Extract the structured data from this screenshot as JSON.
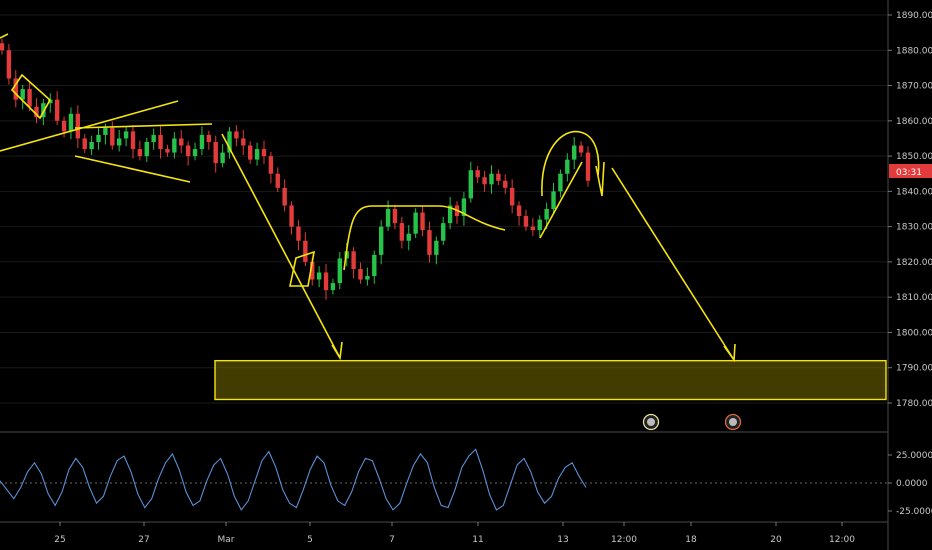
{
  "chart_data": [
    {
      "type": "candlestick",
      "title": "",
      "y_axis": {
        "ticks": [
          "1890.000",
          "1880.000",
          "1870.000",
          "1860.000",
          "1850.000",
          "1840.000",
          "1830.000",
          "1820.000",
          "1810.000",
          "1800.000",
          "1790.000",
          "1780.000"
        ],
        "range": [
          1774,
          1893
        ]
      },
      "x_axis": {
        "ticks": [
          "25",
          "27",
          "Mar",
          "5",
          "7",
          "11",
          "13",
          "12:00",
          "18",
          "20",
          "12:00"
        ]
      },
      "current_price_countdown": "03:31",
      "colors": {
        "up": "#26c24a",
        "down": "#e23b3b",
        "drawing": "#f5e50c",
        "price_tag": "#e23b3b"
      },
      "close_series": [
        1880,
        1872,
        1866,
        1869,
        1864,
        1861,
        1865,
        1866,
        1860,
        1857,
        1862,
        1855,
        1852,
        1854,
        1856,
        1858,
        1853,
        1855,
        1857,
        1852,
        1850,
        1854,
        1856,
        1852,
        1851,
        1855,
        1853,
        1850,
        1852,
        1856,
        1854,
        1848,
        1851,
        1857,
        1855,
        1853,
        1849,
        1852,
        1850,
        1845,
        1841,
        1836,
        1830,
        1826,
        1820,
        1815,
        1817,
        1812,
        1814,
        1821,
        1823,
        1818,
        1815,
        1816,
        1822,
        1830,
        1835,
        1831,
        1826,
        1828,
        1834,
        1829,
        1822,
        1826,
        1831,
        1836,
        1833,
        1838,
        1846,
        1844,
        1842,
        1845,
        1843,
        1841,
        1836,
        1833,
        1830,
        1829,
        1832,
        1835,
        1840,
        1845,
        1849,
        1853,
        1851,
        1843
      ],
      "annotations": [
        "trendline",
        "triangle",
        "channel",
        "rising-wedge",
        "rounded-top",
        "projection-arrow-1",
        "projection-arrow-2",
        "target-zone"
      ],
      "target_zone": [
        1781,
        1792
      ]
    },
    {
      "type": "line",
      "title": "",
      "y_axis": {
        "ticks": [
          "25.0000",
          "0.0000",
          "-25.0000"
        ],
        "range": [
          -32,
          32
        ]
      },
      "series": [
        {
          "values": [
            2,
            -6,
            -14,
            -4,
            10,
            18,
            8,
            -10,
            -20,
            -8,
            12,
            22,
            14,
            -4,
            -18,
            -12,
            6,
            20,
            24,
            10,
            -10,
            -22,
            -14,
            4,
            18,
            26,
            12,
            -8,
            -20,
            -16,
            2,
            16,
            22,
            8,
            -12,
            -24,
            -16,
            2,
            20,
            28,
            14,
            -6,
            -18,
            -22,
            -6,
            12,
            24,
            18,
            -2,
            -16,
            -20,
            -8,
            10,
            22,
            20,
            4,
            -14,
            -24,
            -18,
            0,
            16,
            26,
            18,
            -4,
            -20,
            -22,
            -6,
            14,
            24,
            30,
            12,
            -10,
            -24,
            -20,
            -2,
            16,
            22,
            10,
            -8,
            -18,
            -12,
            4,
            14,
            18,
            6,
            -4
          ]
        }
      ]
    }
  ]
}
